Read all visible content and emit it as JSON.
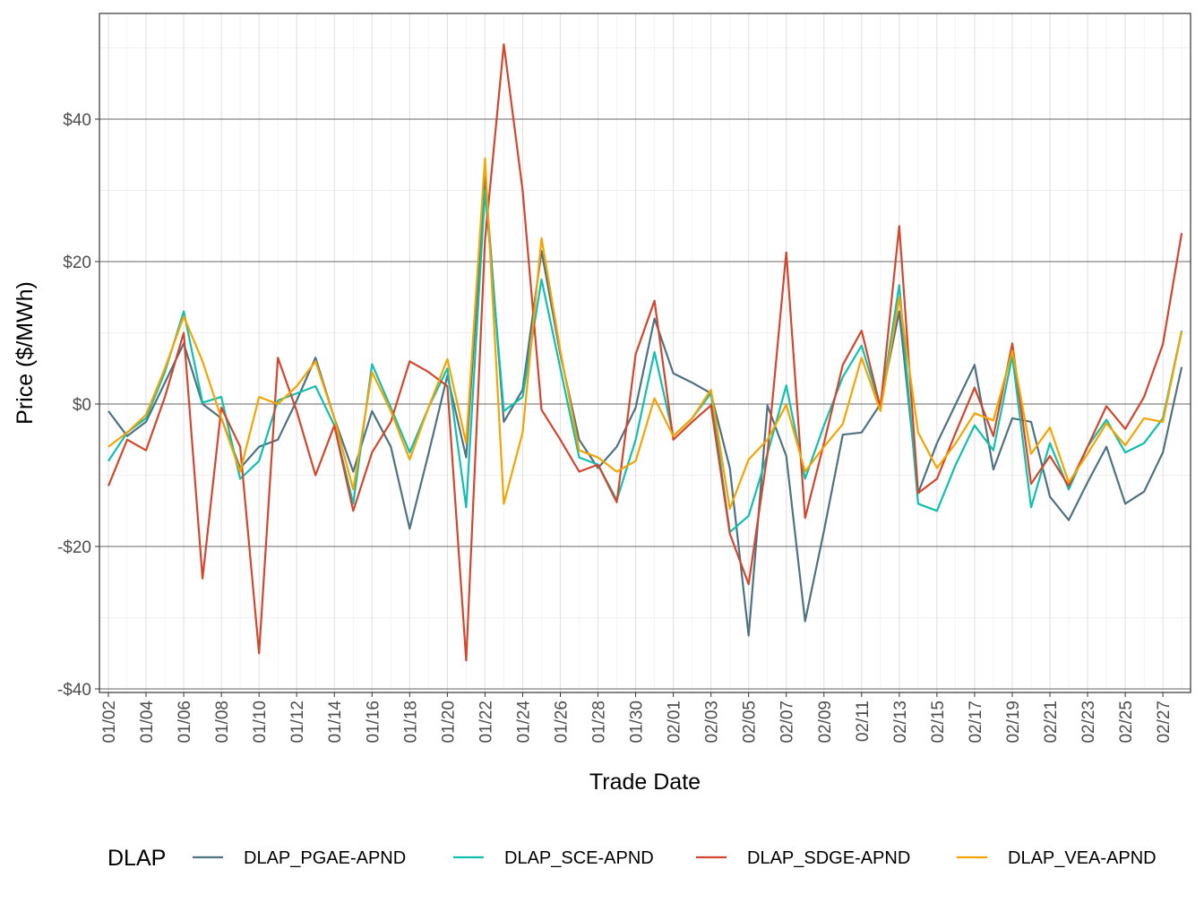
{
  "chart_data": {
    "type": "line",
    "xlabel": "Trade Date",
    "ylabel": "Price ($/MWh)",
    "ylim": [
      -40,
      55
    ],
    "yticks": [
      -40,
      -20,
      0,
      20,
      40
    ],
    "ytick_labels": [
      "-$40",
      "-$20",
      "$0",
      "$20",
      "$40"
    ],
    "grid": true,
    "legend_position": "bottom",
    "legend_title": "DLAP",
    "x": [
      "01/02",
      "01/03",
      "01/04",
      "01/05",
      "01/06",
      "01/07",
      "01/08",
      "01/09",
      "01/10",
      "01/11",
      "01/12",
      "01/13",
      "01/14",
      "01/15",
      "01/16",
      "01/17",
      "01/18",
      "01/19",
      "01/20",
      "01/21",
      "01/22",
      "01/23",
      "01/24",
      "01/25",
      "01/26",
      "01/27",
      "01/28",
      "01/29",
      "01/30",
      "01/31",
      "02/01",
      "02/02",
      "02/03",
      "02/04",
      "02/05",
      "02/06",
      "02/07",
      "02/08",
      "02/09",
      "02/10",
      "02/11",
      "02/12",
      "02/13",
      "02/14",
      "02/15",
      "02/16",
      "02/17",
      "02/18",
      "02/19",
      "02/20",
      "02/21",
      "02/22",
      "02/23",
      "02/24",
      "02/25",
      "02/26",
      "02/27",
      "02/28"
    ],
    "xtick_labels": [
      "01/02",
      "01/04",
      "01/06",
      "01/08",
      "01/10",
      "01/12",
      "01/14",
      "01/16",
      "01/18",
      "01/20",
      "01/22",
      "01/24",
      "01/26",
      "01/28",
      "01/30",
      "02/01",
      "02/03",
      "02/05",
      "02/07",
      "02/09",
      "02/11",
      "02/13",
      "02/15",
      "02/17",
      "02/19",
      "02/21",
      "02/23",
      "02/25",
      "02/27"
    ],
    "series": [
      {
        "name": "DLAP_PGAE-APND",
        "color": "#4e7282",
        "values": [
          -1,
          -4.5,
          -2.5,
          3,
          8.5,
          0,
          -2,
          -9,
          -6,
          -5,
          0.5,
          6.5,
          -2,
          -9.5,
          -1,
          -6,
          -17.5,
          -7,
          4,
          -7.5,
          32,
          -2.5,
          2,
          21.5,
          7,
          -5,
          -9,
          -6,
          -0.5,
          12,
          4.3,
          3,
          1.5,
          -9,
          -32.5,
          -0.2,
          -7.3,
          -30.5,
          -17.8,
          -4.3,
          -4,
          0,
          13,
          -12.5,
          -5.5,
          0,
          5.5,
          -9.2,
          -2,
          -2.5,
          -13,
          -16.3,
          -11,
          -6,
          -14,
          -12.3,
          -6.8,
          5.2
        ]
      },
      {
        "name": "DLAP_SCE-APND",
        "color": "#10bfae",
        "values": [
          -8,
          -4,
          -2,
          4.5,
          13,
          0.2,
          1,
          -10.5,
          -8,
          0.5,
          1.5,
          2.5,
          -3,
          -14,
          5.6,
          -0.5,
          -6.8,
          -0.5,
          5,
          -14.5,
          30,
          -1,
          1,
          17.5,
          5,
          -7.5,
          -8.5,
          -13.5,
          -5,
          7.3,
          -4.5,
          -2,
          1.5,
          -18,
          -15.7,
          -7,
          2.6,
          -10.5,
          -3,
          3.8,
          8.2,
          -0.5,
          16.7,
          -14,
          -15,
          -8.5,
          -3,
          -6.5,
          6.8,
          -14.5,
          -5.5,
          -12,
          -6,
          -2.2,
          -6.8,
          -5.5,
          -2,
          10.3
        ]
      },
      {
        "name": "DLAP_SDGE-APND",
        "color": "#d1462c",
        "values": [
          -11.5,
          -5,
          -6.5,
          1,
          10,
          -24.5,
          -0.5,
          -6,
          -35,
          6.5,
          -1,
          -10,
          -3,
          -15,
          -6.8,
          -2.5,
          6,
          4.5,
          2.5,
          -36,
          23,
          50.5,
          30,
          -0.8,
          -5,
          -9.5,
          -8.5,
          -13.8,
          7,
          14.5,
          -5,
          -2.5,
          -0.2,
          -18.2,
          -25.3,
          -7,
          21.3,
          -16,
          -5.5,
          5.5,
          10.3,
          -0.5,
          25,
          -12.5,
          -10.5,
          -4,
          2.3,
          -4.5,
          8.5,
          -11.2,
          -7.3,
          -11.5,
          -6,
          -0.3,
          -3.5,
          1,
          8.4,
          24
        ]
      },
      {
        "name": "DLAP_VEA-APND",
        "color": "#f5a300",
        "values": [
          -6,
          -4,
          -1.5,
          5,
          12.3,
          6,
          -2,
          -9.5,
          1,
          0,
          2.5,
          6,
          -2,
          -12,
          4.5,
          -1,
          -7.8,
          -0.5,
          6.3,
          -5.5,
          34.5,
          -14,
          -4,
          23.3,
          7.5,
          -6.5,
          -7.5,
          -9.5,
          -8,
          0.8,
          -4.5,
          -2,
          2,
          -14.7,
          -7.8,
          -5,
          -0.1,
          -9.5,
          -6,
          -2.8,
          6.5,
          -1,
          15,
          -4,
          -9,
          -5.5,
          -1.3,
          -2.3,
          7.5,
          -7,
          -3.3,
          -11,
          -7,
          -2.7,
          -5.8,
          -2,
          -2.5,
          10.2
        ]
      }
    ]
  }
}
